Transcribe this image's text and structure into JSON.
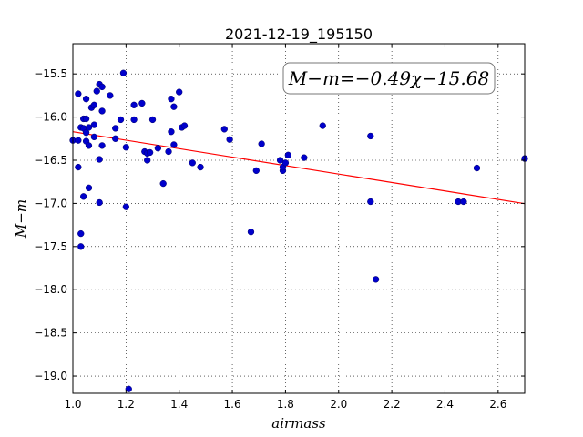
{
  "chart_data": {
    "type": "scatter",
    "title": "2021-12-19_195150",
    "xlabel": "airmass",
    "ylabel": "M−m",
    "xlim": [
      1.0,
      2.7
    ],
    "ylim": [
      -19.2,
      -15.15
    ],
    "y_inverted": true,
    "grid": true,
    "x_ticks": [
      1.0,
      1.2,
      1.4,
      1.6,
      1.8,
      2.0,
      2.2,
      2.4,
      2.6
    ],
    "x_tick_labels": [
      "1.0",
      "1.2",
      "1.4",
      "1.6",
      "1.8",
      "2.0",
      "2.2",
      "2.4",
      "2.6"
    ],
    "y_ticks": [
      -15.5,
      -16.0,
      -16.5,
      -17.0,
      -17.5,
      -18.0,
      -18.5,
      -19.0
    ],
    "y_tick_labels": [
      "−15.5",
      "−16.0",
      "−16.5",
      "−17.0",
      "−17.5",
      "−18.0",
      "−18.5",
      "−19.0"
    ],
    "annotation": "M−m=−0.49χ−15.68",
    "fit": {
      "slope": -0.49,
      "intercept": -15.68,
      "color": "#ff0000"
    },
    "point_color": "#0000cc",
    "points": [
      [
        1.0,
        -16.27
      ],
      [
        1.02,
        -15.73
      ],
      [
        1.02,
        -16.27
      ],
      [
        1.02,
        -16.58
      ],
      [
        1.03,
        -16.12
      ],
      [
        1.03,
        -17.35
      ],
      [
        1.03,
        -17.5
      ],
      [
        1.04,
        -16.02
      ],
      [
        1.04,
        -16.92
      ],
      [
        1.04,
        -16.13
      ],
      [
        1.05,
        -15.79
      ],
      [
        1.05,
        -16.02
      ],
      [
        1.05,
        -16.18
      ],
      [
        1.05,
        -16.28
      ],
      [
        1.06,
        -16.12
      ],
      [
        1.06,
        -16.33
      ],
      [
        1.06,
        -16.82
      ],
      [
        1.07,
        -15.89
      ],
      [
        1.08,
        -15.86
      ],
      [
        1.08,
        -16.09
      ],
      [
        1.08,
        -16.23
      ],
      [
        1.09,
        -15.7
      ],
      [
        1.1,
        -15.62
      ],
      [
        1.1,
        -16.49
      ],
      [
        1.1,
        -16.99
      ],
      [
        1.11,
        -15.65
      ],
      [
        1.11,
        -15.93
      ],
      [
        1.11,
        -16.33
      ],
      [
        1.14,
        -15.75
      ],
      [
        1.16,
        -16.13
      ],
      [
        1.16,
        -16.25
      ],
      [
        1.18,
        -16.03
      ],
      [
        1.19,
        -15.49
      ],
      [
        1.2,
        -16.35
      ],
      [
        1.2,
        -17.04
      ],
      [
        1.21,
        -19.15
      ],
      [
        1.23,
        -15.86
      ],
      [
        1.23,
        -16.03
      ],
      [
        1.26,
        -15.84
      ],
      [
        1.27,
        -16.4
      ],
      [
        1.28,
        -16.42
      ],
      [
        1.28,
        -16.5
      ],
      [
        1.29,
        -16.41
      ],
      [
        1.3,
        -16.03
      ],
      [
        1.32,
        -16.36
      ],
      [
        1.34,
        -16.77
      ],
      [
        1.36,
        -16.4
      ],
      [
        1.37,
        -15.79
      ],
      [
        1.37,
        -16.17
      ],
      [
        1.38,
        -15.88
      ],
      [
        1.38,
        -16.32
      ],
      [
        1.4,
        -15.71
      ],
      [
        1.41,
        -16.12
      ],
      [
        1.42,
        -16.1
      ],
      [
        1.45,
        -16.53
      ],
      [
        1.48,
        -16.58
      ],
      [
        1.57,
        -16.14
      ],
      [
        1.59,
        -16.26
      ],
      [
        1.67,
        -17.33
      ],
      [
        1.69,
        -16.62
      ],
      [
        1.71,
        -16.31
      ],
      [
        1.78,
        -16.5
      ],
      [
        1.79,
        -16.62
      ],
      [
        1.79,
        -16.58
      ],
      [
        1.8,
        -16.53
      ],
      [
        1.81,
        -16.44
      ],
      [
        1.87,
        -16.47
      ],
      [
        1.94,
        -16.1
      ],
      [
        2.12,
        -16.22
      ],
      [
        2.12,
        -16.98
      ],
      [
        2.14,
        -17.88
      ],
      [
        2.45,
        -16.98
      ],
      [
        2.47,
        -16.98
      ],
      [
        2.52,
        -16.59
      ],
      [
        2.7,
        -16.48
      ]
    ]
  }
}
